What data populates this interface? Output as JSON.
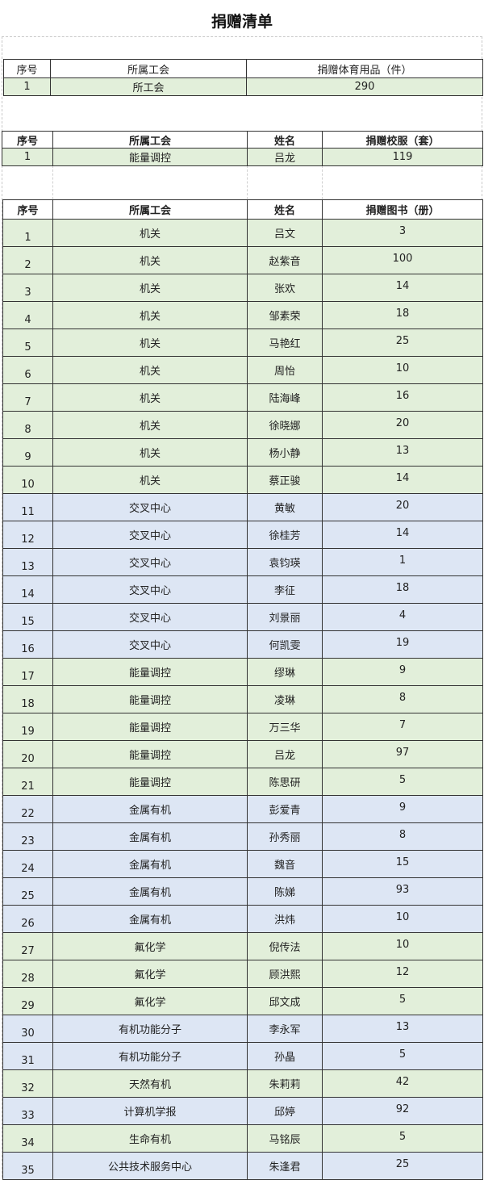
{
  "title": "捐赠清单",
  "colors": {
    "green": "#e2efda",
    "blue": "#dde6f4"
  },
  "sports": {
    "headers": [
      "序号",
      "所属工会",
      "捐赠体育用品（件）"
    ],
    "rows": [
      {
        "idx": "1",
        "unit": "所工会",
        "count": "290"
      }
    ]
  },
  "uniforms": {
    "headers": [
      "序号",
      "所属工会",
      "姓名",
      "捐赠校服（套）"
    ],
    "rows": [
      {
        "idx": "1",
        "unit": "能量调控",
        "name": "吕龙",
        "count": "119"
      }
    ]
  },
  "books": {
    "headers": [
      "序号",
      "所属工会",
      "姓名",
      "捐赠图书（册）"
    ],
    "rows": [
      {
        "idx": "1",
        "unit": "机关",
        "name": "吕文",
        "count": "3",
        "fill": "green"
      },
      {
        "idx": "2",
        "unit": "机关",
        "name": "赵紫音",
        "count": "100",
        "fill": "green"
      },
      {
        "idx": "3",
        "unit": "机关",
        "name": "张欢",
        "count": "14",
        "fill": "green"
      },
      {
        "idx": "4",
        "unit": "机关",
        "name": "邹素荣",
        "count": "18",
        "fill": "green"
      },
      {
        "idx": "5",
        "unit": "机关",
        "name": "马艳红",
        "count": "25",
        "fill": "green"
      },
      {
        "idx": "6",
        "unit": "机关",
        "name": "周怡",
        "count": "10",
        "fill": "green"
      },
      {
        "idx": "7",
        "unit": "机关",
        "name": "陆海峰",
        "count": "16",
        "fill": "green"
      },
      {
        "idx": "8",
        "unit": "机关",
        "name": "徐晓娜",
        "count": "20",
        "fill": "green"
      },
      {
        "idx": "9",
        "unit": "机关",
        "name": "杨小静",
        "count": "13",
        "fill": "green"
      },
      {
        "idx": "10",
        "unit": "机关",
        "name": "蔡正骏",
        "count": "14",
        "fill": "green"
      },
      {
        "idx": "11",
        "unit": "交叉中心",
        "name": "黄敏",
        "count": "20",
        "fill": "blue"
      },
      {
        "idx": "12",
        "unit": "交叉中心",
        "name": "徐桂芳",
        "count": "14",
        "fill": "blue"
      },
      {
        "idx": "13",
        "unit": "交叉中心",
        "name": "袁钧瑛",
        "count": "1",
        "fill": "blue"
      },
      {
        "idx": "14",
        "unit": "交叉中心",
        "name": "李征",
        "count": "18",
        "fill": "blue"
      },
      {
        "idx": "15",
        "unit": "交叉中心",
        "name": "刘景丽",
        "count": "4",
        "fill": "blue"
      },
      {
        "idx": "16",
        "unit": "交叉中心",
        "name": "何凯雯",
        "count": "19",
        "fill": "blue"
      },
      {
        "idx": "17",
        "unit": "能量调控",
        "name": "缪琳",
        "count": "9",
        "fill": "green"
      },
      {
        "idx": "18",
        "unit": "能量调控",
        "name": "凌琳",
        "count": "8",
        "fill": "green"
      },
      {
        "idx": "19",
        "unit": "能量调控",
        "name": "万三华",
        "count": "7",
        "fill": "green"
      },
      {
        "idx": "20",
        "unit": "能量调控",
        "name": "吕龙",
        "count": "97",
        "fill": "green"
      },
      {
        "idx": "21",
        "unit": "能量调控",
        "name": "陈思研",
        "count": "5",
        "fill": "green"
      },
      {
        "idx": "22",
        "unit": "金属有机",
        "name": "彭爱青",
        "count": "9",
        "fill": "blue"
      },
      {
        "idx": "23",
        "unit": "金属有机",
        "name": "孙秀丽",
        "count": "8",
        "fill": "blue"
      },
      {
        "idx": "24",
        "unit": "金属有机",
        "name": "魏音",
        "count": "15",
        "fill": "blue"
      },
      {
        "idx": "25",
        "unit": "金属有机",
        "name": "陈娣",
        "count": "93",
        "fill": "blue"
      },
      {
        "idx": "26",
        "unit": "金属有机",
        "name": "洪炜",
        "count": "10",
        "fill": "blue"
      },
      {
        "idx": "27",
        "unit": "氟化学",
        "name": "倪传法",
        "count": "10",
        "fill": "green"
      },
      {
        "idx": "28",
        "unit": "氟化学",
        "name": "顾洪熙",
        "count": "12",
        "fill": "green"
      },
      {
        "idx": "29",
        "unit": "氟化学",
        "name": "邱文成",
        "count": "5",
        "fill": "green"
      },
      {
        "idx": "30",
        "unit": "有机功能分子",
        "name": "李永军",
        "count": "13",
        "fill": "blue"
      },
      {
        "idx": "31",
        "unit": "有机功能分子",
        "name": "孙晶",
        "count": "5",
        "fill": "blue"
      },
      {
        "idx": "32",
        "unit": "天然有机",
        "name": "朱莉莉",
        "count": "42",
        "fill": "green"
      },
      {
        "idx": "33",
        "unit": "计算机学报",
        "name": "邱婷",
        "count": "92",
        "fill": "blue"
      },
      {
        "idx": "34",
        "unit": "生命有机",
        "name": "马铭辰",
        "count": "5",
        "fill": "green"
      },
      {
        "idx": "35",
        "unit": "公共技术服务中心",
        "name": "朱逢君",
        "count": "25",
        "fill": "blue"
      }
    ]
  }
}
